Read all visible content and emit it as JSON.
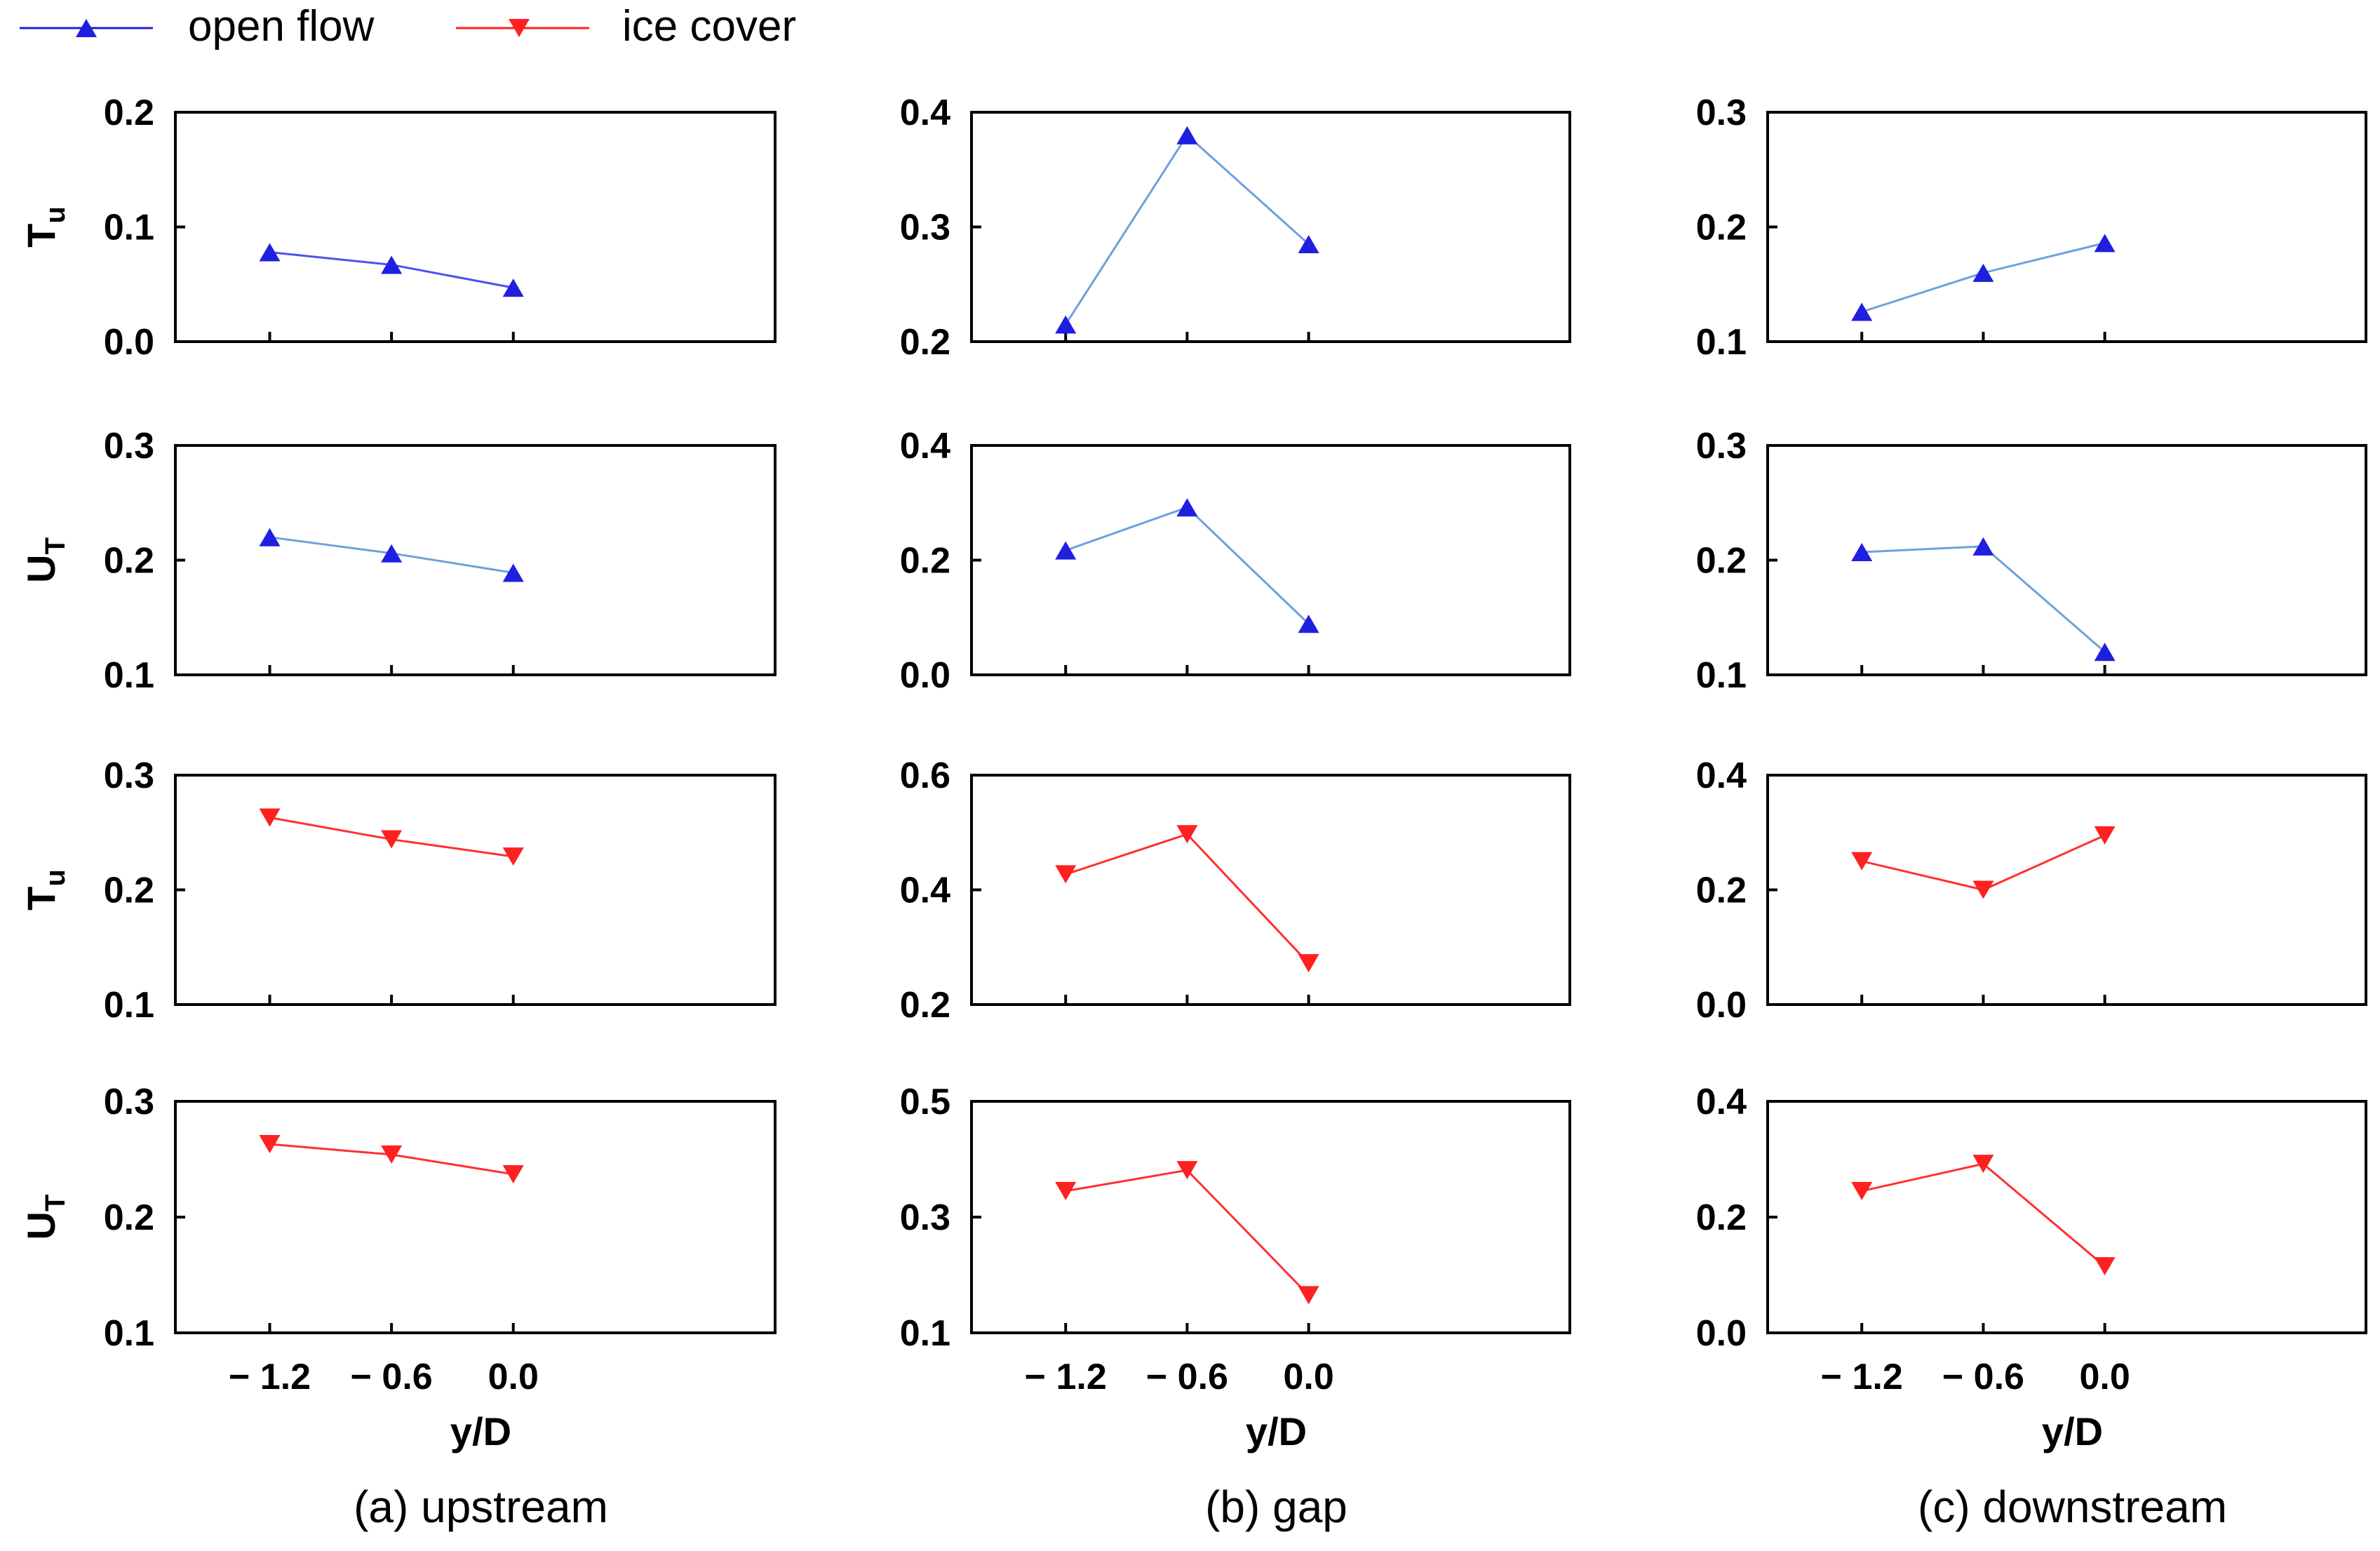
{
  "legend": [
    {
      "label": "open flow",
      "color": "#1f1fe0",
      "marker": "triangle-up"
    },
    {
      "label": "ice cover",
      "color": "#ff2020",
      "marker": "triangle-down"
    }
  ],
  "columns": [
    {
      "caption": "(a) upstream"
    },
    {
      "caption": "(b) gap"
    },
    {
      "caption": "(c) downstream"
    }
  ],
  "chart_data": [
    {
      "type": "line",
      "title": "(a) upstream",
      "ylabel": "Tu",
      "series_name": "open flow",
      "color": "#1f1fe0",
      "line_color": "#5050f0",
      "marker": "triangle-up",
      "x": [
        -1.2,
        -0.6,
        0.0
      ],
      "values": [
        0.078,
        0.067,
        0.047
      ],
      "ylim": [
        0.0,
        0.2
      ],
      "yticks": [
        0.0,
        0.1,
        0.2
      ],
      "ytick_labels": [
        "0.0",
        "0.1",
        "0.2"
      ]
    },
    {
      "type": "line",
      "title": "(b) gap",
      "ylabel": "Tu",
      "series_name": "open flow",
      "color": "#1f1fe0",
      "line_color": "#6fa0dc",
      "marker": "triangle-up",
      "x": [
        -1.2,
        -0.6,
        0.0
      ],
      "values": [
        0.215,
        0.38,
        0.285
      ],
      "ylim": [
        0.2,
        0.4
      ],
      "yticks": [
        0.2,
        0.3,
        0.4
      ],
      "ytick_labels": [
        "0.2",
        "0.3",
        "0.4"
      ]
    },
    {
      "type": "line",
      "title": "(c) downstream",
      "ylabel": "Tu",
      "series_name": "open flow",
      "color": "#1f1fe0",
      "line_color": "#6fa0dc",
      "marker": "triangle-up",
      "x": [
        -1.2,
        -0.6,
        0.0
      ],
      "values": [
        0.126,
        0.16,
        0.186
      ],
      "ylim": [
        0.1,
        0.3
      ],
      "yticks": [
        0.1,
        0.2,
        0.3
      ],
      "ytick_labels": [
        "0.1",
        "0.2",
        "0.3"
      ]
    },
    {
      "type": "line",
      "title": "(a) upstream",
      "ylabel": "UT",
      "series_name": "open flow",
      "color": "#1f1fe0",
      "line_color": "#6fa0dc",
      "marker": "triangle-up",
      "x": [
        -1.2,
        -0.6,
        0.0
      ],
      "values": [
        0.22,
        0.206,
        0.189
      ],
      "ylim": [
        0.1,
        0.3
      ],
      "yticks": [
        0.1,
        0.2,
        0.3
      ],
      "ytick_labels": [
        "0.1",
        "0.2",
        "0.3"
      ]
    },
    {
      "type": "line",
      "title": "(b) gap",
      "ylabel": "UT",
      "series_name": "open flow",
      "color": "#1f1fe0",
      "line_color": "#6fa0dc",
      "marker": "triangle-up",
      "x": [
        -1.2,
        -0.6,
        0.0
      ],
      "values": [
        0.217,
        0.292,
        0.089
      ],
      "ylim": [
        0.0,
        0.4
      ],
      "yticks": [
        0.0,
        0.2,
        0.4
      ],
      "ytick_labels": [
        "0.0",
        "0.2",
        "0.4"
      ]
    },
    {
      "type": "line",
      "title": "(c) downstream",
      "ylabel": "UT",
      "series_name": "open flow",
      "color": "#1f1fe0",
      "line_color": "#6fa0dc",
      "marker": "triangle-up",
      "x": [
        -1.2,
        -0.6,
        0.0
      ],
      "values": [
        0.207,
        0.212,
        0.12
      ],
      "ylim": [
        0.1,
        0.3
      ],
      "yticks": [
        0.1,
        0.2,
        0.3
      ],
      "ytick_labels": [
        "0.1",
        "0.2",
        "0.3"
      ]
    },
    {
      "type": "line",
      "title": "(a) upstream",
      "ylabel": "Tu",
      "series_name": "ice cover",
      "color": "#ff2020",
      "line_color": "#ff3030",
      "marker": "triangle-down",
      "x": [
        -1.2,
        -0.6,
        0.0
      ],
      "values": [
        0.263,
        0.244,
        0.229
      ],
      "ylim": [
        0.1,
        0.3
      ],
      "yticks": [
        0.1,
        0.2,
        0.3
      ],
      "ytick_labels": [
        "0.1",
        "0.2",
        "0.3"
      ]
    },
    {
      "type": "line",
      "title": "(b) gap",
      "ylabel": "Tu",
      "series_name": "ice cover",
      "color": "#ff2020",
      "line_color": "#ff3030",
      "marker": "triangle-down",
      "x": [
        -1.2,
        -0.6,
        0.0
      ],
      "values": [
        0.427,
        0.497,
        0.272
      ],
      "ylim": [
        0.2,
        0.6
      ],
      "yticks": [
        0.2,
        0.4,
        0.6
      ],
      "ytick_labels": [
        "0.2",
        "0.4",
        "0.6"
      ]
    },
    {
      "type": "line",
      "title": "(c) downstream",
      "ylabel": "Tu",
      "series_name": "ice cover",
      "color": "#ff2020",
      "line_color": "#ff3030",
      "marker": "triangle-down",
      "x": [
        -1.2,
        -0.6,
        0.0
      ],
      "values": [
        0.25,
        0.2,
        0.295
      ],
      "ylim": [
        0.0,
        0.4
      ],
      "yticks": [
        0.0,
        0.2,
        0.4
      ],
      "ytick_labels": [
        "0.0",
        "0.2",
        "0.4"
      ]
    },
    {
      "type": "line",
      "title": "(a) upstream",
      "ylabel": "UT",
      "series_name": "ice cover",
      "color": "#ff2020",
      "line_color": "#ff3030",
      "marker": "triangle-down",
      "x": [
        -1.2,
        -0.6,
        0.0
      ],
      "values": [
        0.263,
        0.254,
        0.237
      ],
      "ylim": [
        0.1,
        0.3
      ],
      "yticks": [
        0.1,
        0.2,
        0.3
      ],
      "ytick_labels": [
        "0.1",
        "0.2",
        "0.3"
      ]
    },
    {
      "type": "line",
      "title": "(b) gap",
      "ylabel": "UT",
      "series_name": "ice cover",
      "color": "#ff2020",
      "line_color": "#ff3030",
      "marker": "triangle-down",
      "x": [
        -1.2,
        -0.6,
        0.0
      ],
      "values": [
        0.345,
        0.381,
        0.165
      ],
      "ylim": [
        0.1,
        0.5
      ],
      "yticks": [
        0.1,
        0.3,
        0.5
      ],
      "ytick_labels": [
        "0.1",
        "0.3",
        "0.5"
      ]
    },
    {
      "type": "line",
      "title": "(c) downstream",
      "ylabel": "UT",
      "series_name": "ice cover",
      "color": "#ff2020",
      "line_color": "#ff3030",
      "marker": "triangle-down",
      "x": [
        -1.2,
        -0.6,
        0.0
      ],
      "values": [
        0.245,
        0.292,
        0.115
      ],
      "ylim": [
        0.0,
        0.4
      ],
      "yticks": [
        0.0,
        0.2,
        0.4
      ],
      "ytick_labels": [
        "0.0",
        "0.2",
        "0.4"
      ]
    }
  ],
  "x_axis": {
    "label": "y/D",
    "ticks": [
      -1.2,
      -0.6,
      0.0
    ],
    "tick_labels": [
      "− 1.2",
      "− 0.6",
      "0.0"
    ],
    "xlim": [
      -1.665,
      1.29
    ]
  },
  "y_axis_labels": [
    {
      "main": "T",
      "sub": "u"
    },
    {
      "main": "U",
      "sub": "T"
    },
    {
      "main": "T",
      "sub": "u"
    },
    {
      "main": "U",
      "sub": "T"
    }
  ]
}
